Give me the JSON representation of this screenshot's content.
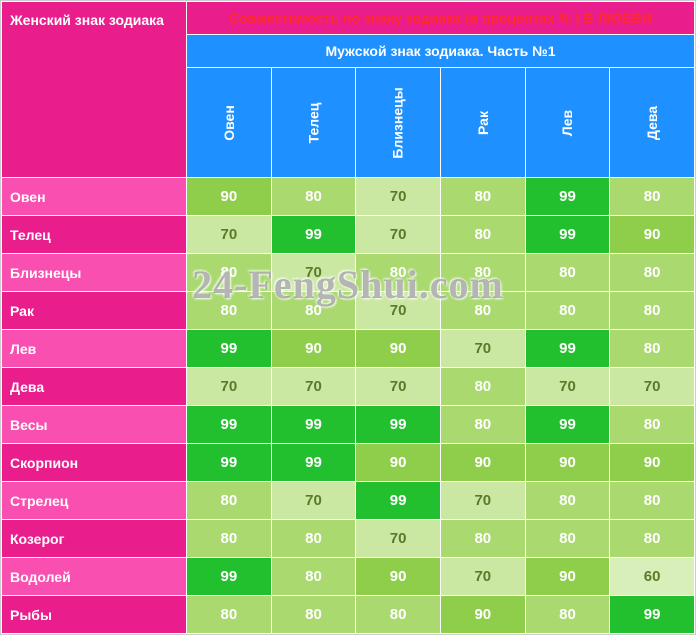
{
  "corner_label": "Женский знак зодиака",
  "title": "Совместимость по знаку зодиака (в процентах % ) В ЛЮБВИ",
  "subtitle": "Мужской знак зодиака. Часть №1",
  "watermark": "24-FengShui.com",
  "colors": {
    "pink_bright": "#f84fb0",
    "pink_dark": "#e91e8c",
    "blue": "#1e90ff",
    "g99": "#22c02f",
    "g90": "#8fce4a",
    "g80": "#a9d96f",
    "g70": "#cbe8a3",
    "g60": "#d9efb9"
  },
  "columns": [
    "Овен",
    "Телец",
    "Близнецы",
    "Рак",
    "Лев",
    "Дева"
  ],
  "row_labels": [
    "Овен",
    "Телец",
    "Близнецы",
    "Рак",
    "Лев",
    "Дева",
    "Весы",
    "Скорпион",
    "Стрелец",
    "Козерог",
    "Водолей",
    "Рыбы"
  ],
  "rows": [
    [
      90,
      80,
      70,
      80,
      99,
      80
    ],
    [
      70,
      99,
      70,
      80,
      99,
      90
    ],
    [
      80,
      70,
      80,
      80,
      80,
      80
    ],
    [
      80,
      80,
      70,
      80,
      80,
      80
    ],
    [
      99,
      90,
      90,
      70,
      99,
      80
    ],
    [
      70,
      70,
      70,
      80,
      70,
      70
    ],
    [
      99,
      99,
      99,
      80,
      99,
      80
    ],
    [
      99,
      99,
      90,
      90,
      90,
      90
    ],
    [
      80,
      70,
      99,
      70,
      80,
      80
    ],
    [
      80,
      80,
      70,
      80,
      80,
      80
    ],
    [
      99,
      80,
      90,
      70,
      90,
      60
    ],
    [
      80,
      80,
      80,
      90,
      80,
      99
    ]
  ]
}
